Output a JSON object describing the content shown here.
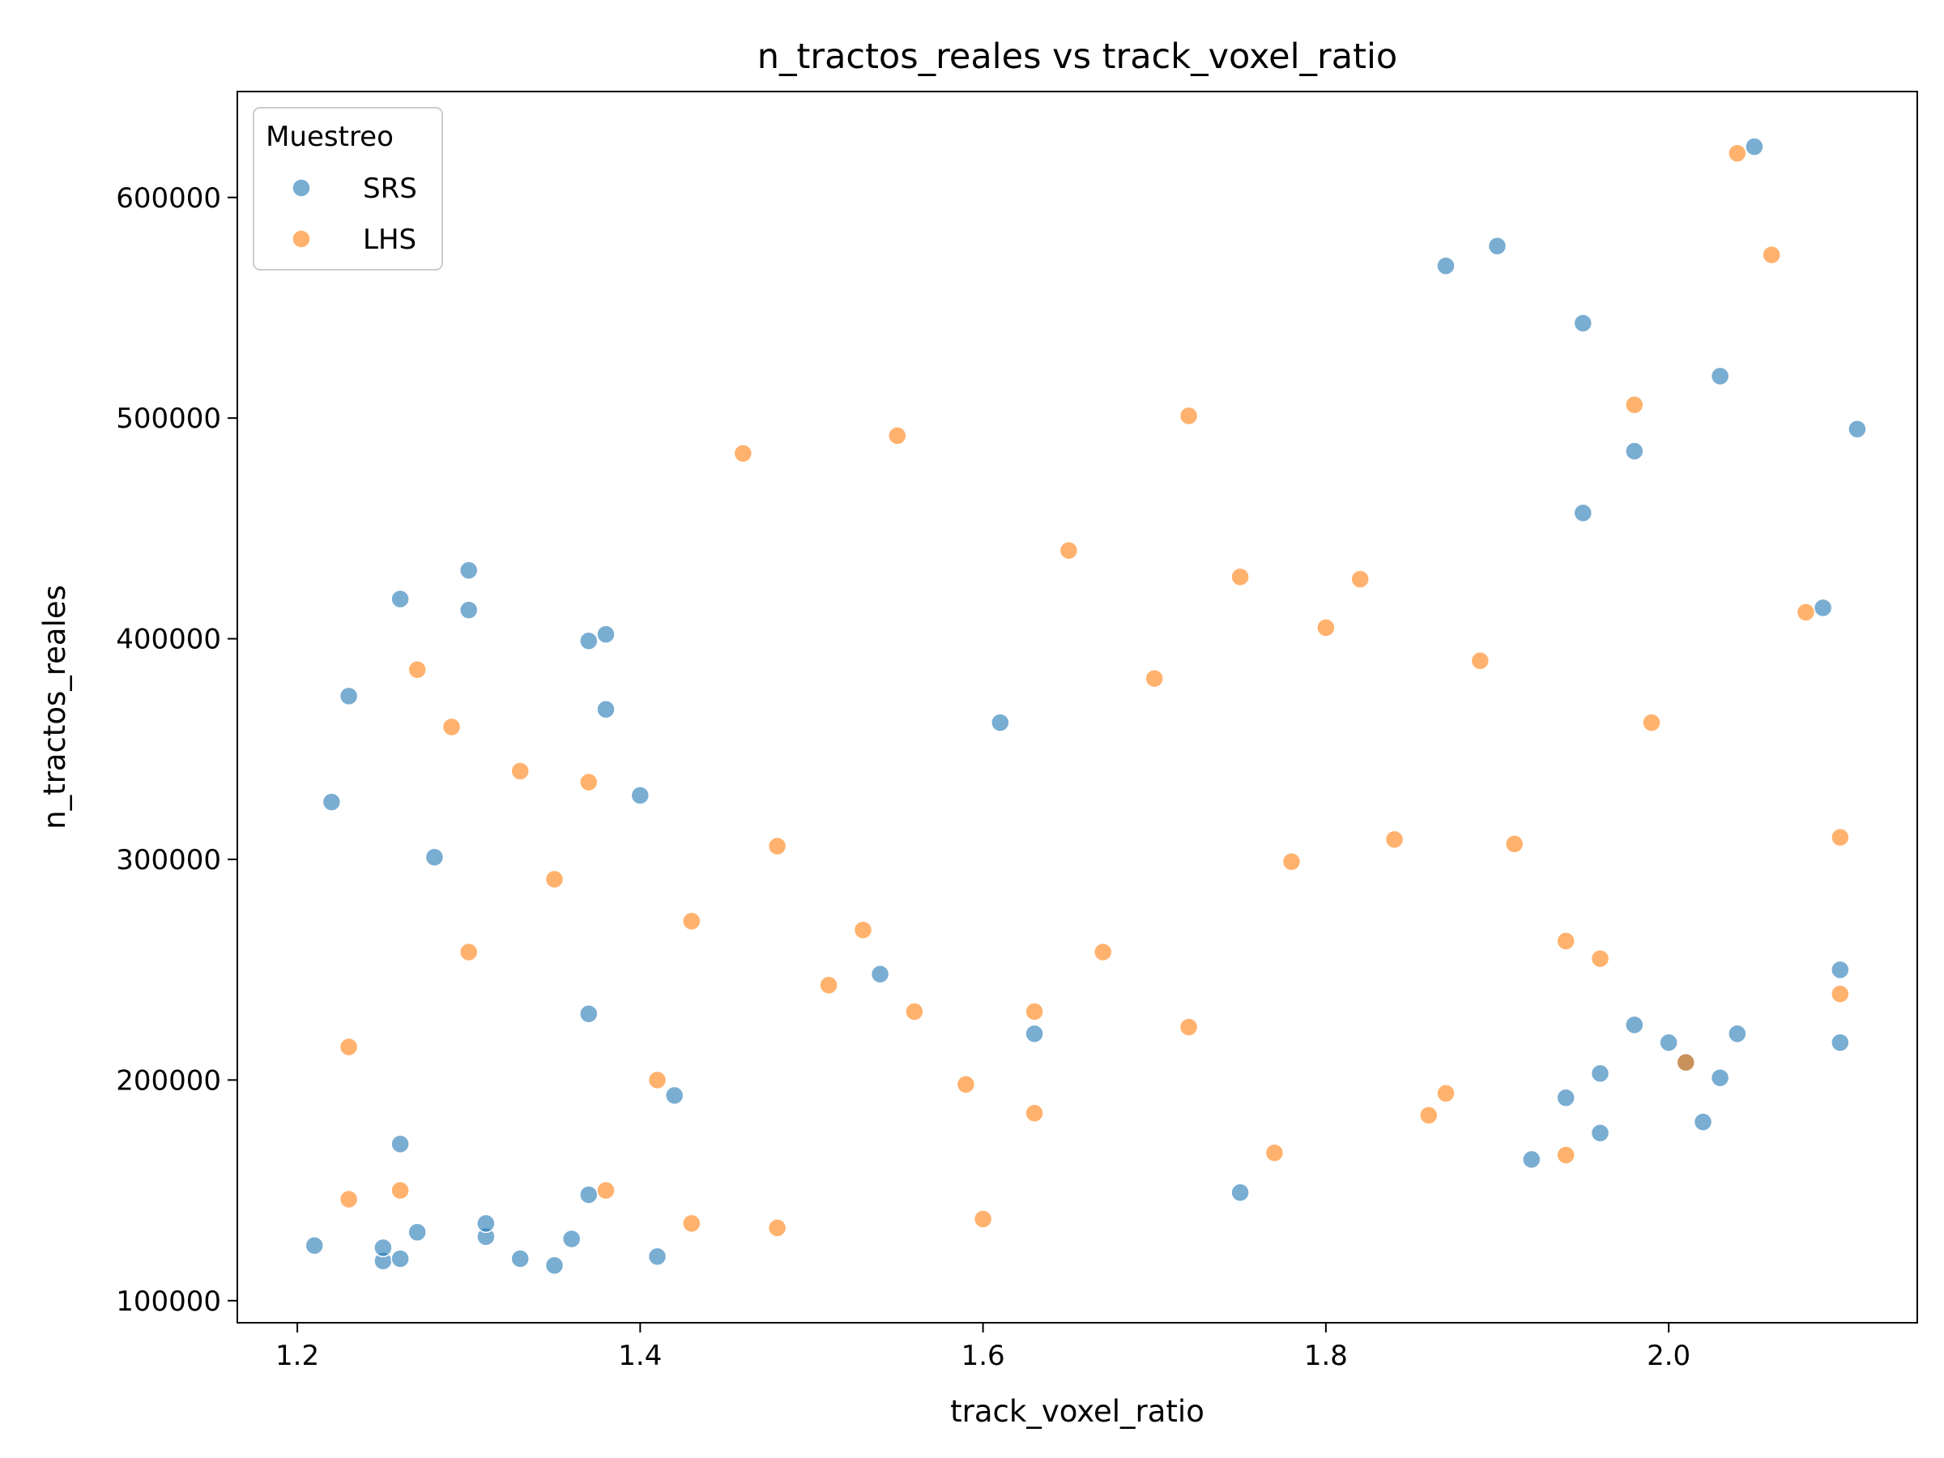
{
  "chart_data": {
    "type": "scatter",
    "title": "n_tractos_reales vs track_voxel_ratio",
    "xlabel": "track_voxel_ratio",
    "ylabel": "n_tractos_reales",
    "xlim": [
      1.165,
      2.145
    ],
    "ylim": [
      90000,
      648000
    ],
    "x_ticks": [
      1.2,
      1.4,
      1.6,
      1.8,
      2.0
    ],
    "x_tick_labels": [
      "1.2",
      "1.4",
      "1.6",
      "1.8",
      "2.0"
    ],
    "y_ticks": [
      100000,
      200000,
      300000,
      400000,
      500000,
      600000
    ],
    "y_tick_labels": [
      "100000",
      "200000",
      "300000",
      "400000",
      "500000",
      "600000"
    ],
    "grid": false,
    "legend": {
      "title": "Muestreo",
      "placement": "top-left"
    },
    "series": [
      {
        "name": "SRS",
        "color": "#1f77b4",
        "points": [
          [
            1.21,
            125000
          ],
          [
            1.22,
            326000
          ],
          [
            1.23,
            374000
          ],
          [
            1.25,
            118000
          ],
          [
            1.25,
            124000
          ],
          [
            1.26,
            119000
          ],
          [
            1.26,
            171000
          ],
          [
            1.26,
            418000
          ],
          [
            1.27,
            131000
          ],
          [
            1.28,
            301000
          ],
          [
            1.3,
            413000
          ],
          [
            1.3,
            431000
          ],
          [
            1.31,
            129000
          ],
          [
            1.31,
            135000
          ],
          [
            1.33,
            119000
          ],
          [
            1.35,
            116000
          ],
          [
            1.36,
            128000
          ],
          [
            1.37,
            148000
          ],
          [
            1.37,
            230000
          ],
          [
            1.37,
            399000
          ],
          [
            1.38,
            368000
          ],
          [
            1.38,
            402000
          ],
          [
            1.4,
            329000
          ],
          [
            1.41,
            120000
          ],
          [
            1.42,
            193000
          ],
          [
            1.54,
            248000
          ],
          [
            1.61,
            362000
          ],
          [
            1.63,
            221000
          ],
          [
            1.75,
            149000
          ],
          [
            1.87,
            569000
          ],
          [
            1.9,
            578000
          ],
          [
            1.92,
            164000
          ],
          [
            1.94,
            192000
          ],
          [
            1.95,
            543000
          ],
          [
            1.95,
            457000
          ],
          [
            1.96,
            176000
          ],
          [
            1.96,
            203000
          ],
          [
            1.98,
            225000
          ],
          [
            1.98,
            485000
          ],
          [
            2.0,
            217000
          ],
          [
            2.01,
            208000
          ],
          [
            2.02,
            181000
          ],
          [
            2.03,
            201000
          ],
          [
            2.03,
            519000
          ],
          [
            2.04,
            221000
          ],
          [
            2.05,
            623000
          ],
          [
            2.09,
            414000
          ],
          [
            2.1,
            250000
          ],
          [
            2.1,
            217000
          ],
          [
            2.11,
            495000
          ]
        ]
      },
      {
        "name": "LHS",
        "color": "#ff7f0e",
        "points": [
          [
            1.23,
            146000
          ],
          [
            1.23,
            215000
          ],
          [
            1.26,
            150000
          ],
          [
            1.27,
            386000
          ],
          [
            1.29,
            360000
          ],
          [
            1.3,
            258000
          ],
          [
            1.33,
            340000
          ],
          [
            1.35,
            291000
          ],
          [
            1.37,
            335000
          ],
          [
            1.38,
            150000
          ],
          [
            1.41,
            200000
          ],
          [
            1.43,
            272000
          ],
          [
            1.43,
            135000
          ],
          [
            1.46,
            484000
          ],
          [
            1.48,
            133000
          ],
          [
            1.48,
            306000
          ],
          [
            1.51,
            243000
          ],
          [
            1.53,
            268000
          ],
          [
            1.55,
            492000
          ],
          [
            1.56,
            231000
          ],
          [
            1.59,
            198000
          ],
          [
            1.6,
            137000
          ],
          [
            1.63,
            185000
          ],
          [
            1.63,
            231000
          ],
          [
            1.65,
            440000
          ],
          [
            1.67,
            258000
          ],
          [
            1.7,
            382000
          ],
          [
            1.72,
            501000
          ],
          [
            1.72,
            224000
          ],
          [
            1.75,
            428000
          ],
          [
            1.77,
            167000
          ],
          [
            1.78,
            299000
          ],
          [
            1.8,
            405000
          ],
          [
            1.82,
            427000
          ],
          [
            1.84,
            309000
          ],
          [
            1.86,
            184000
          ],
          [
            1.87,
            194000
          ],
          [
            1.89,
            390000
          ],
          [
            1.91,
            307000
          ],
          [
            1.94,
            263000
          ],
          [
            1.94,
            166000
          ],
          [
            1.96,
            255000
          ],
          [
            1.98,
            506000
          ],
          [
            1.99,
            362000
          ],
          [
            2.01,
            208000
          ],
          [
            2.04,
            620000
          ],
          [
            2.06,
            574000
          ],
          [
            2.08,
            412000
          ],
          [
            2.1,
            310000
          ],
          [
            2.1,
            239000
          ]
        ]
      }
    ]
  }
}
